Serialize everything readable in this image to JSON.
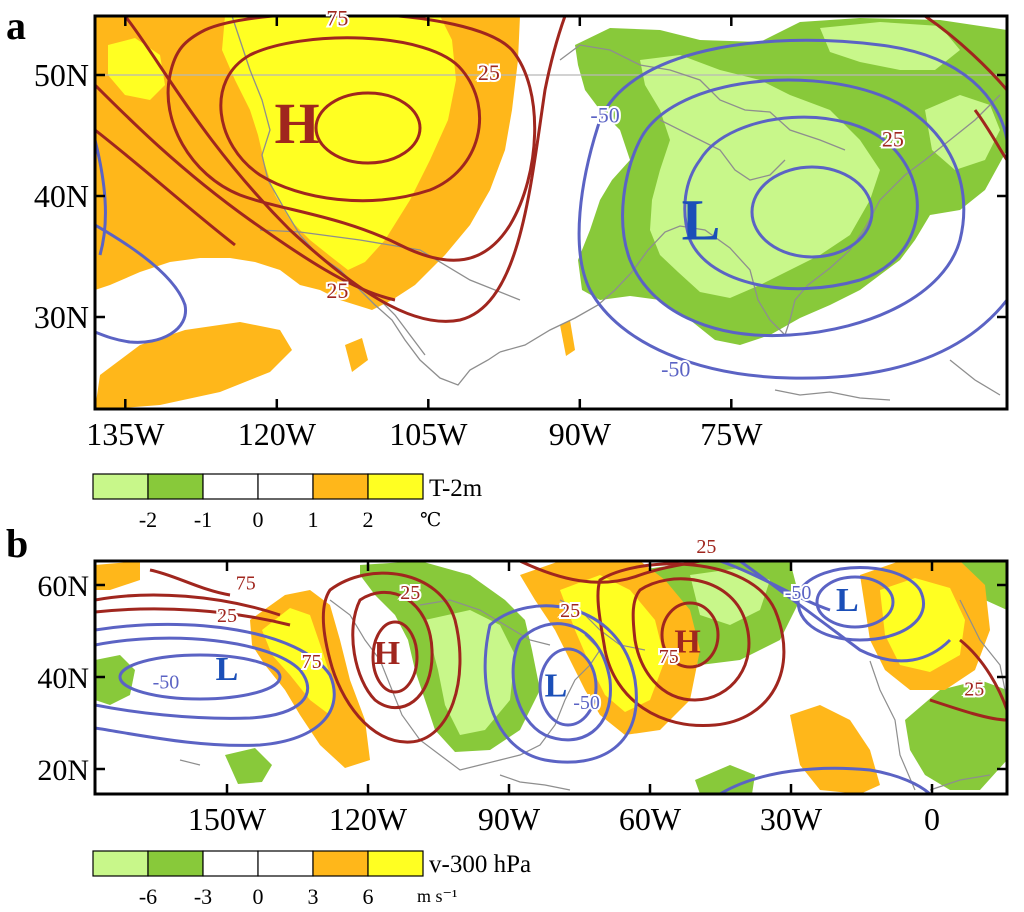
{
  "panels": [
    {
      "letter": "a",
      "lat_labels": [
        "50N",
        "40N",
        "30N"
      ],
      "lon_labels": [
        "135W",
        "120W",
        "105W",
        "90W",
        "75W"
      ],
      "centers": [
        {
          "label": "H",
          "lon": -118,
          "lat": 45.5,
          "color": "#a0261e"
        },
        {
          "label": "L",
          "lon": -78,
          "lat": 37.5,
          "color": "#1b4fb8"
        }
      ],
      "contour_labels": [
        {
          "text": "75",
          "lon": -114,
          "lat": 54.5,
          "color": "#a0261e"
        },
        {
          "text": "25",
          "lon": -99,
          "lat": 50,
          "color": "#a0261e"
        },
        {
          "text": "25",
          "lon": -114,
          "lat": 32,
          "color": "#a0261e"
        },
        {
          "text": "25",
          "lon": -59,
          "lat": 44.5,
          "color": "#a0261e"
        },
        {
          "text": "-50",
          "lon": -87.5,
          "lat": 46.5,
          "color": "#5b63c4"
        },
        {
          "text": "-50",
          "lon": -80.5,
          "lat": 25.5,
          "color": "#5b63c4"
        }
      ],
      "legend": {
        "title": "T-2m",
        "ticks": [
          "-2",
          "-1",
          "0",
          "1",
          "2"
        ],
        "unit": "℃",
        "colors": [
          "#c8f78a",
          "#88c93a",
          "#ffffff",
          "#ffffff",
          "#ffb71a",
          "#ffff22"
        ]
      }
    },
    {
      "letter": "b",
      "lat_labels": [
        "60N",
        "40N",
        "20N"
      ],
      "lon_labels": [
        "150W",
        "120W",
        "90W",
        "60W",
        "30W",
        "0"
      ],
      "centers": [
        {
          "label": "L",
          "lon": -150,
          "lat": 41,
          "color": "#1b4fb8"
        },
        {
          "label": "H",
          "lon": -116,
          "lat": 44.5,
          "color": "#a0261e"
        },
        {
          "label": "L",
          "lon": -80,
          "lat": 37.5,
          "color": "#1b4fb8"
        },
        {
          "label": "H",
          "lon": -52,
          "lat": 47,
          "color": "#a0261e"
        },
        {
          "label": "L",
          "lon": -18,
          "lat": 56,
          "color": "#1b4fb8"
        }
      ],
      "contour_labels": [
        {
          "text": "25",
          "lon": -150,
          "lat": 53,
          "color": "#a0261e"
        },
        {
          "text": "75",
          "lon": -146,
          "lat": 60,
          "color": "#a0261e"
        },
        {
          "text": "75",
          "lon": -132,
          "lat": 43,
          "color": "#a0261e"
        },
        {
          "text": "25",
          "lon": -111,
          "lat": 58,
          "color": "#a0261e"
        },
        {
          "text": "25",
          "lon": -77,
          "lat": 54,
          "color": "#a0261e"
        },
        {
          "text": "75",
          "lon": -56,
          "lat": 44,
          "color": "#a0261e"
        },
        {
          "text": "25",
          "lon": -48,
          "lat": 68,
          "color": "#a0261e"
        },
        {
          "text": "-50",
          "lon": -163,
          "lat": 38.5,
          "color": "#5b63c4"
        },
        {
          "text": "-50",
          "lon": -73.5,
          "lat": 34,
          "color": "#5b63c4"
        },
        {
          "text": "-50",
          "lon": -28.5,
          "lat": 58,
          "color": "#5b63c4"
        },
        {
          "text": "25",
          "lon": 9,
          "lat": 37,
          "color": "#a0261e"
        }
      ],
      "legend": {
        "title": "v-300 hPa",
        "ticks": [
          "-6",
          "-3",
          "0",
          "3",
          "6"
        ],
        "unit": "m s⁻¹",
        "colors": [
          "#c8f78a",
          "#88c93a",
          "#ffffff",
          "#ffffff",
          "#ffb71a",
          "#ffff22"
        ]
      }
    }
  ]
}
